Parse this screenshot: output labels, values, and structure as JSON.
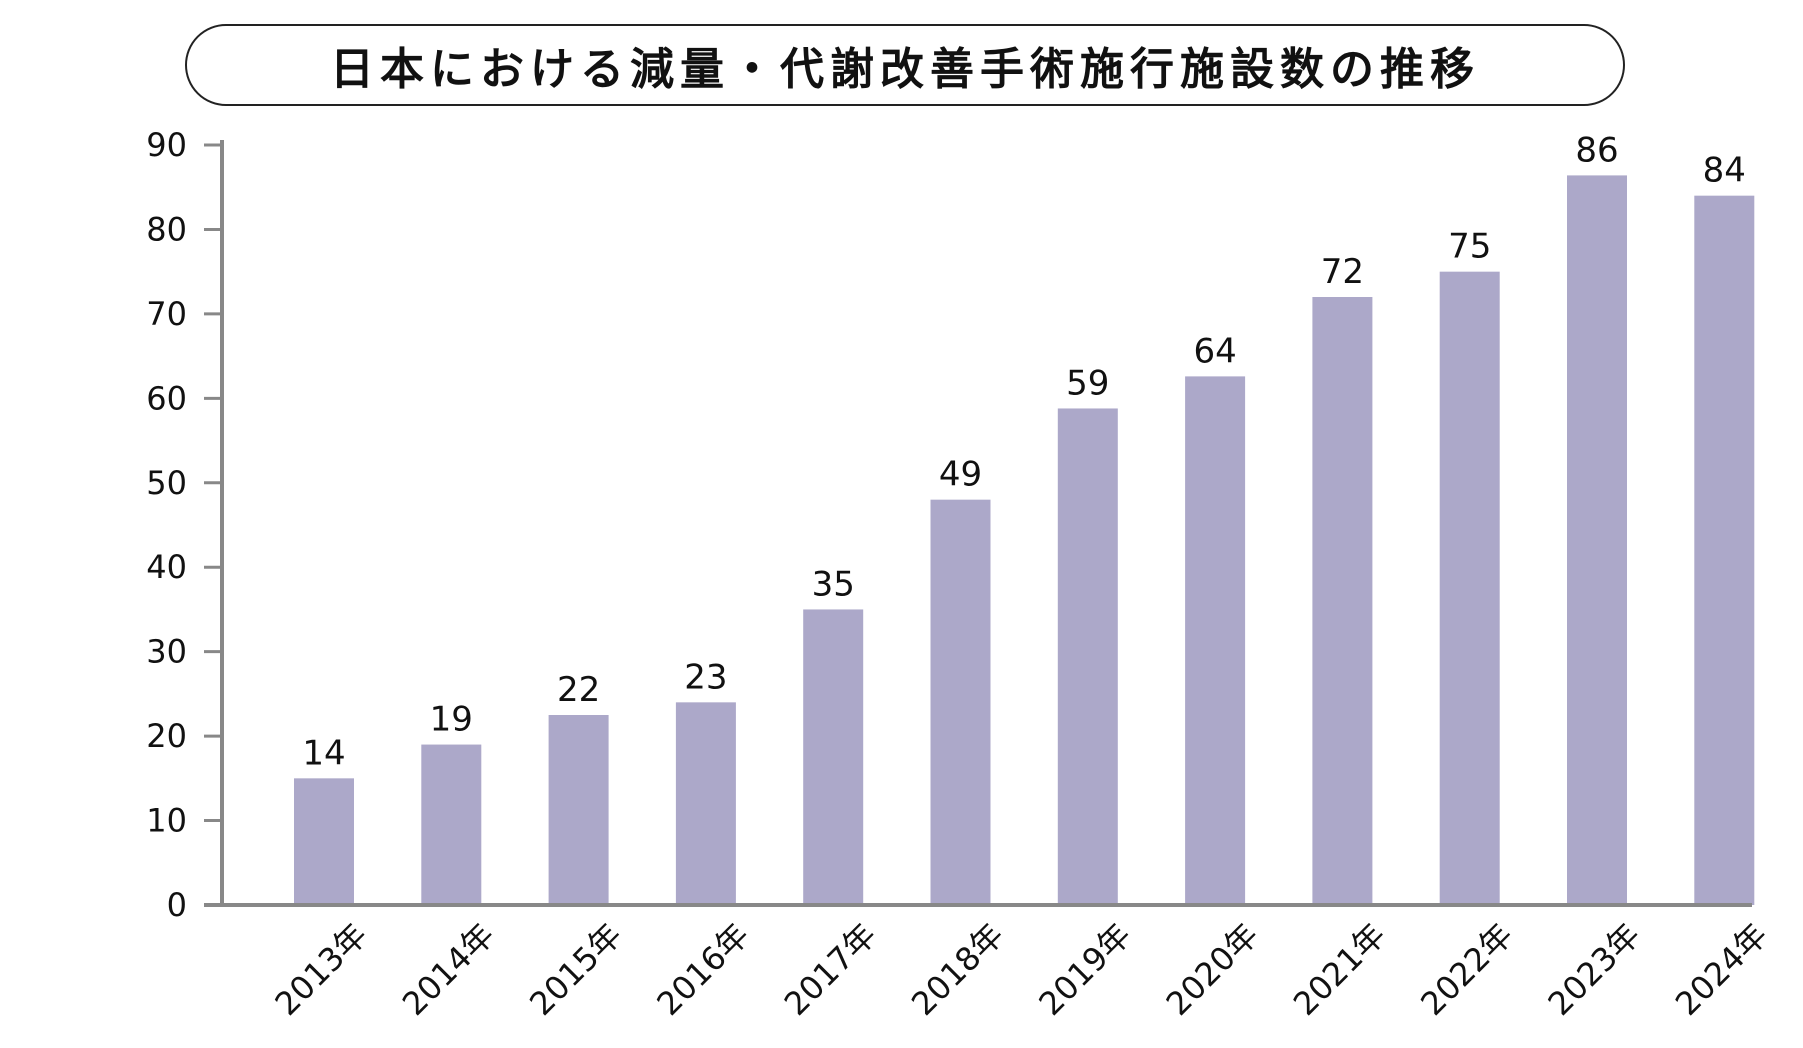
{
  "chart_data": {
    "type": "bar",
    "title": "日本における減量・代謝改善手術施行施設数の推移",
    "categories": [
      "2013年",
      "2014年",
      "2015年",
      "2016年",
      "2017年",
      "2018年",
      "2019年",
      "2020年",
      "2021年",
      "2022年",
      "2023年",
      "2024年"
    ],
    "values": [
      14,
      19,
      22,
      23,
      35,
      49,
      59,
      64,
      72,
      75,
      86,
      84
    ],
    "value_labels": [
      "14",
      "19",
      "22",
      "23",
      "35",
      "49",
      "59",
      "64",
      "72",
      "75",
      "86",
      "84"
    ],
    "bar_heights_read": [
      15,
      19,
      22.5,
      24,
      35,
      48,
      58.8,
      62.6,
      72,
      75,
      86.4,
      84
    ],
    "ylim": [
      0,
      90
    ],
    "yticks": [
      0,
      10,
      20,
      30,
      40,
      50,
      60,
      70,
      80,
      90
    ],
    "xlabel": "",
    "ylabel": "",
    "grid": false,
    "legend": "none",
    "bar_color": "#aca8c9",
    "axis_color": "#888888"
  }
}
